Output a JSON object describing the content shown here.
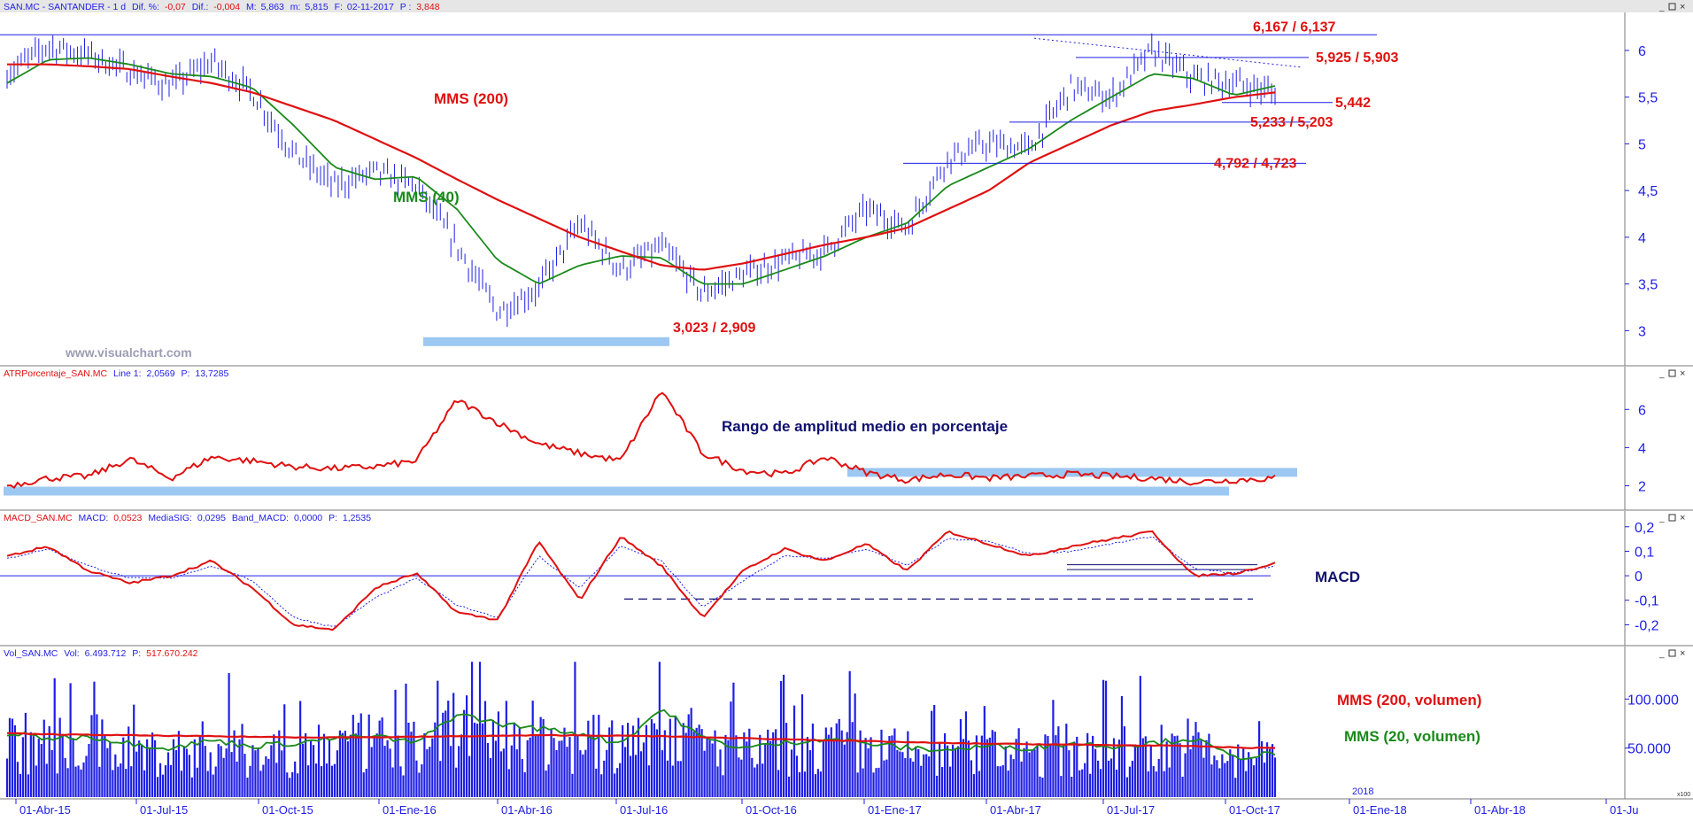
{
  "colors": {
    "price": "#1e1ee6",
    "mms200": "#e01010",
    "mms40": "#1a8a1a",
    "annot_red": "#e01010",
    "navy": "#101070",
    "band": "#9cc8f2",
    "axis": "#1e1ee6",
    "frame": "#7a7a7a",
    "watermark": "#9c9cb4"
  },
  "x_axis": {
    "labels": [
      "01-Abr-15",
      "01-Jul-15",
      "01-Oct-15",
      "01-Ene-16",
      "01-Abr-16",
      "01-Jul-16",
      "01-Oct-16",
      "01-Ene-17",
      "01-Abr-17",
      "01-Jul-17",
      "01-Oct-17",
      "01-Ene-18",
      "01-Abr-18",
      "01-Ju"
    ],
    "year_marker": "2018",
    "corner_label": "x100"
  },
  "chart_data": [
    {
      "id": "price",
      "type": "line",
      "header": {
        "ticker": "SAN.MC - SANTANDER - 1 d",
        "dif_pct_label": "Dif. %:",
        "dif_pct_value": "-0,07",
        "dif_label": "Dif.:",
        "dif_value": "-0,004",
        "max_label": "M:",
        "max_value": "5,863",
        "min_label": "m:",
        "min_value": "5,815",
        "date_label": "F:",
        "date_value": "02-11-2017",
        "last_label": "P :",
        "last_value": "3,848"
      },
      "ylim": [
        2.7,
        6.35
      ],
      "yticks": [
        "3",
        "3,5",
        "4",
        "4,5",
        "5",
        "5,5",
        "6"
      ],
      "ytick_values": [
        3,
        3.5,
        4,
        4.5,
        5,
        5.5,
        6
      ],
      "x_months": [
        0,
        1,
        2,
        3,
        4,
        5,
        6,
        7,
        8,
        9,
        10,
        11,
        12,
        13,
        14,
        15,
        16,
        17,
        18,
        19,
        20,
        21,
        22,
        23,
        24,
        25,
        26,
        27,
        28,
        29,
        30,
        31
      ],
      "series": [
        {
          "key": "price",
          "values": [
            5.75,
            6.05,
            5.95,
            5.78,
            5.62,
            5.88,
            5.55,
            4.9,
            4.55,
            4.7,
            4.55,
            3.9,
            3.2,
            3.45,
            4.15,
            3.65,
            3.9,
            3.4,
            3.6,
            3.75,
            3.85,
            4.3,
            4.1,
            4.85,
            5.0,
            4.95,
            5.6,
            5.5,
            6.0,
            5.7,
            5.65,
            5.55
          ],
          "style": "bars"
        },
        {
          "key": "mms40",
          "name": "MMS (40)",
          "values": [
            5.65,
            5.9,
            5.92,
            5.85,
            5.75,
            5.72,
            5.6,
            5.2,
            4.75,
            4.62,
            4.65,
            4.3,
            3.75,
            3.5,
            3.7,
            3.8,
            3.78,
            3.5,
            3.5,
            3.65,
            3.8,
            4.0,
            4.15,
            4.55,
            4.75,
            4.95,
            5.25,
            5.5,
            5.75,
            5.7,
            5.52,
            5.62
          ],
          "style": "line"
        },
        {
          "key": "mms200",
          "name": "MMS (200)",
          "values": [
            5.85,
            5.85,
            5.83,
            5.8,
            5.72,
            5.65,
            5.55,
            5.4,
            5.25,
            5.05,
            4.85,
            4.62,
            4.4,
            4.2,
            4.0,
            3.85,
            3.7,
            3.65,
            3.72,
            3.82,
            3.92,
            4.0,
            4.1,
            4.3,
            4.5,
            4.8,
            5.0,
            5.2,
            5.35,
            5.42,
            5.5,
            5.55
          ],
          "style": "line"
        }
      ],
      "levels": [
        {
          "label": "6,167 / 6,137"
        },
        {
          "label": "5,925 / 5,903"
        },
        {
          "label": "5,442"
        },
        {
          "label": "5,233 / 5,203"
        },
        {
          "label": "4,792 / 4,723"
        },
        {
          "label": "3,023 / 2,909"
        }
      ],
      "level_values": [
        6.167,
        5.925,
        5.442,
        5.233,
        4.792,
        3.023
      ],
      "watermark": "www.visualchart.com"
    },
    {
      "id": "atr",
      "type": "line",
      "header": {
        "name": "ATRPorcentaje_SAN.MC",
        "line_label": "Line 1:",
        "line_value": "2,0569",
        "p_label": "P:",
        "p_value": "13,7285"
      },
      "annotation": "Rango de amplitud medio en porcentaje",
      "ylim": [
        1.0,
        7.5
      ],
      "yticks": [
        "2",
        "4",
        "6"
      ],
      "ytick_values": [
        2,
        4,
        6
      ],
      "x_months": [
        0,
        1,
        2,
        3,
        4,
        5,
        6,
        7,
        8,
        9,
        10,
        11,
        12,
        13,
        14,
        15,
        16,
        17,
        18,
        19,
        20,
        21,
        22,
        23,
        24,
        25,
        26,
        27,
        28,
        29,
        30,
        31
      ],
      "values": [
        2.0,
        2.4,
        2.5,
        3.4,
        2.4,
        3.5,
        3.3,
        3.0,
        2.9,
        3.0,
        3.3,
        6.5,
        5.3,
        4.2,
        3.7,
        3.3,
        7.0,
        3.7,
        2.8,
        2.6,
        3.5,
        2.7,
        2.3,
        2.6,
        2.4,
        2.5,
        2.6,
        2.5,
        2.4,
        2.2,
        2.3,
        2.4
      ],
      "bands": [
        2.7,
        1.72
      ]
    },
    {
      "id": "macd",
      "type": "line",
      "header": {
        "name": "MACD_SAN.MC",
        "macd_label": "MACD:",
        "macd_value": "0,0523",
        "sig_label": "MediaSIG:",
        "sig_value": "0,0295",
        "band_label": "Band_MACD:",
        "band_value": "0,0000",
        "p_label": "P:",
        "p_value": "1,2535"
      },
      "annotation": "MACD",
      "ylim": [
        -0.26,
        0.21
      ],
      "yticks": [
        "-0,2",
        "-0,1",
        "0",
        "0,1",
        "0,2"
      ],
      "ytick_values": [
        -0.2,
        -0.1,
        0,
        0.1,
        0.2
      ],
      "x_months": [
        0,
        1,
        2,
        3,
        4,
        5,
        6,
        7,
        8,
        9,
        10,
        11,
        12,
        13,
        14,
        15,
        16,
        17,
        18,
        19,
        20,
        21,
        22,
        23,
        24,
        25,
        26,
        27,
        28,
        29,
        30,
        31
      ],
      "series": [
        {
          "key": "macd",
          "values": [
            0.08,
            0.12,
            0.02,
            -0.03,
            0.0,
            0.06,
            -0.05,
            -0.2,
            -0.22,
            -0.05,
            0.01,
            -0.15,
            -0.18,
            0.14,
            -0.1,
            0.16,
            0.04,
            -0.17,
            0.02,
            0.11,
            0.06,
            0.13,
            0.02,
            0.18,
            0.13,
            0.08,
            0.12,
            0.15,
            0.18,
            0.0,
            0.01,
            0.05
          ]
        },
        {
          "key": "signal",
          "values": [
            0.07,
            0.11,
            0.04,
            -0.01,
            -0.01,
            0.04,
            -0.02,
            -0.17,
            -0.21,
            -0.09,
            -0.01,
            -0.12,
            -0.17,
            0.08,
            -0.05,
            0.12,
            0.06,
            -0.13,
            -0.02,
            0.08,
            0.07,
            0.11,
            0.04,
            0.15,
            0.14,
            0.09,
            0.1,
            0.13,
            0.16,
            0.03,
            0.01,
            0.04
          ]
        }
      ],
      "dashed_level": -0.095
    },
    {
      "id": "volume",
      "type": "bar",
      "header": {
        "name": "Vol_SAN.MC",
        "vol_label": "Vol:",
        "vol_value": "6.493.712",
        "p_label": "P:",
        "p_value": "517.670.242"
      },
      "annotations": [
        "MMS (200, volumen)",
        "MMS (20, volumen)"
      ],
      "ylim": [
        0,
        140000
      ],
      "yticks": [
        "50.000",
        "100.000"
      ],
      "ytick_values": [
        50000,
        100000
      ],
      "x_months": [
        0,
        1,
        2,
        3,
        4,
        5,
        6,
        7,
        8,
        9,
        10,
        11,
        12,
        13,
        14,
        15,
        16,
        17,
        18,
        19,
        20,
        21,
        22,
        23,
        24,
        25,
        26,
        27,
        28,
        29,
        30,
        31
      ],
      "mms20": [
        65000,
        60000,
        62000,
        55000,
        50000,
        58000,
        52000,
        55000,
        60000,
        62000,
        55000,
        85000,
        75000,
        70000,
        65000,
        55000,
        90000,
        60000,
        50000,
        55000,
        60000,
        55000,
        50000,
        48000,
        52000,
        50000,
        55000,
        52000,
        55000,
        60000,
        40000,
        45000
      ],
      "mms200": [
        65000,
        64000,
        63500,
        63000,
        62500,
        62000,
        61500,
        61000,
        61000,
        61000,
        61500,
        62000,
        62500,
        63000,
        63000,
        62500,
        62000,
        61000,
        60000,
        59000,
        58000,
        57000,
        56000,
        55000,
        54500,
        54000,
        53500,
        53000,
        52500,
        52000,
        50500,
        50000
      ]
    }
  ]
}
